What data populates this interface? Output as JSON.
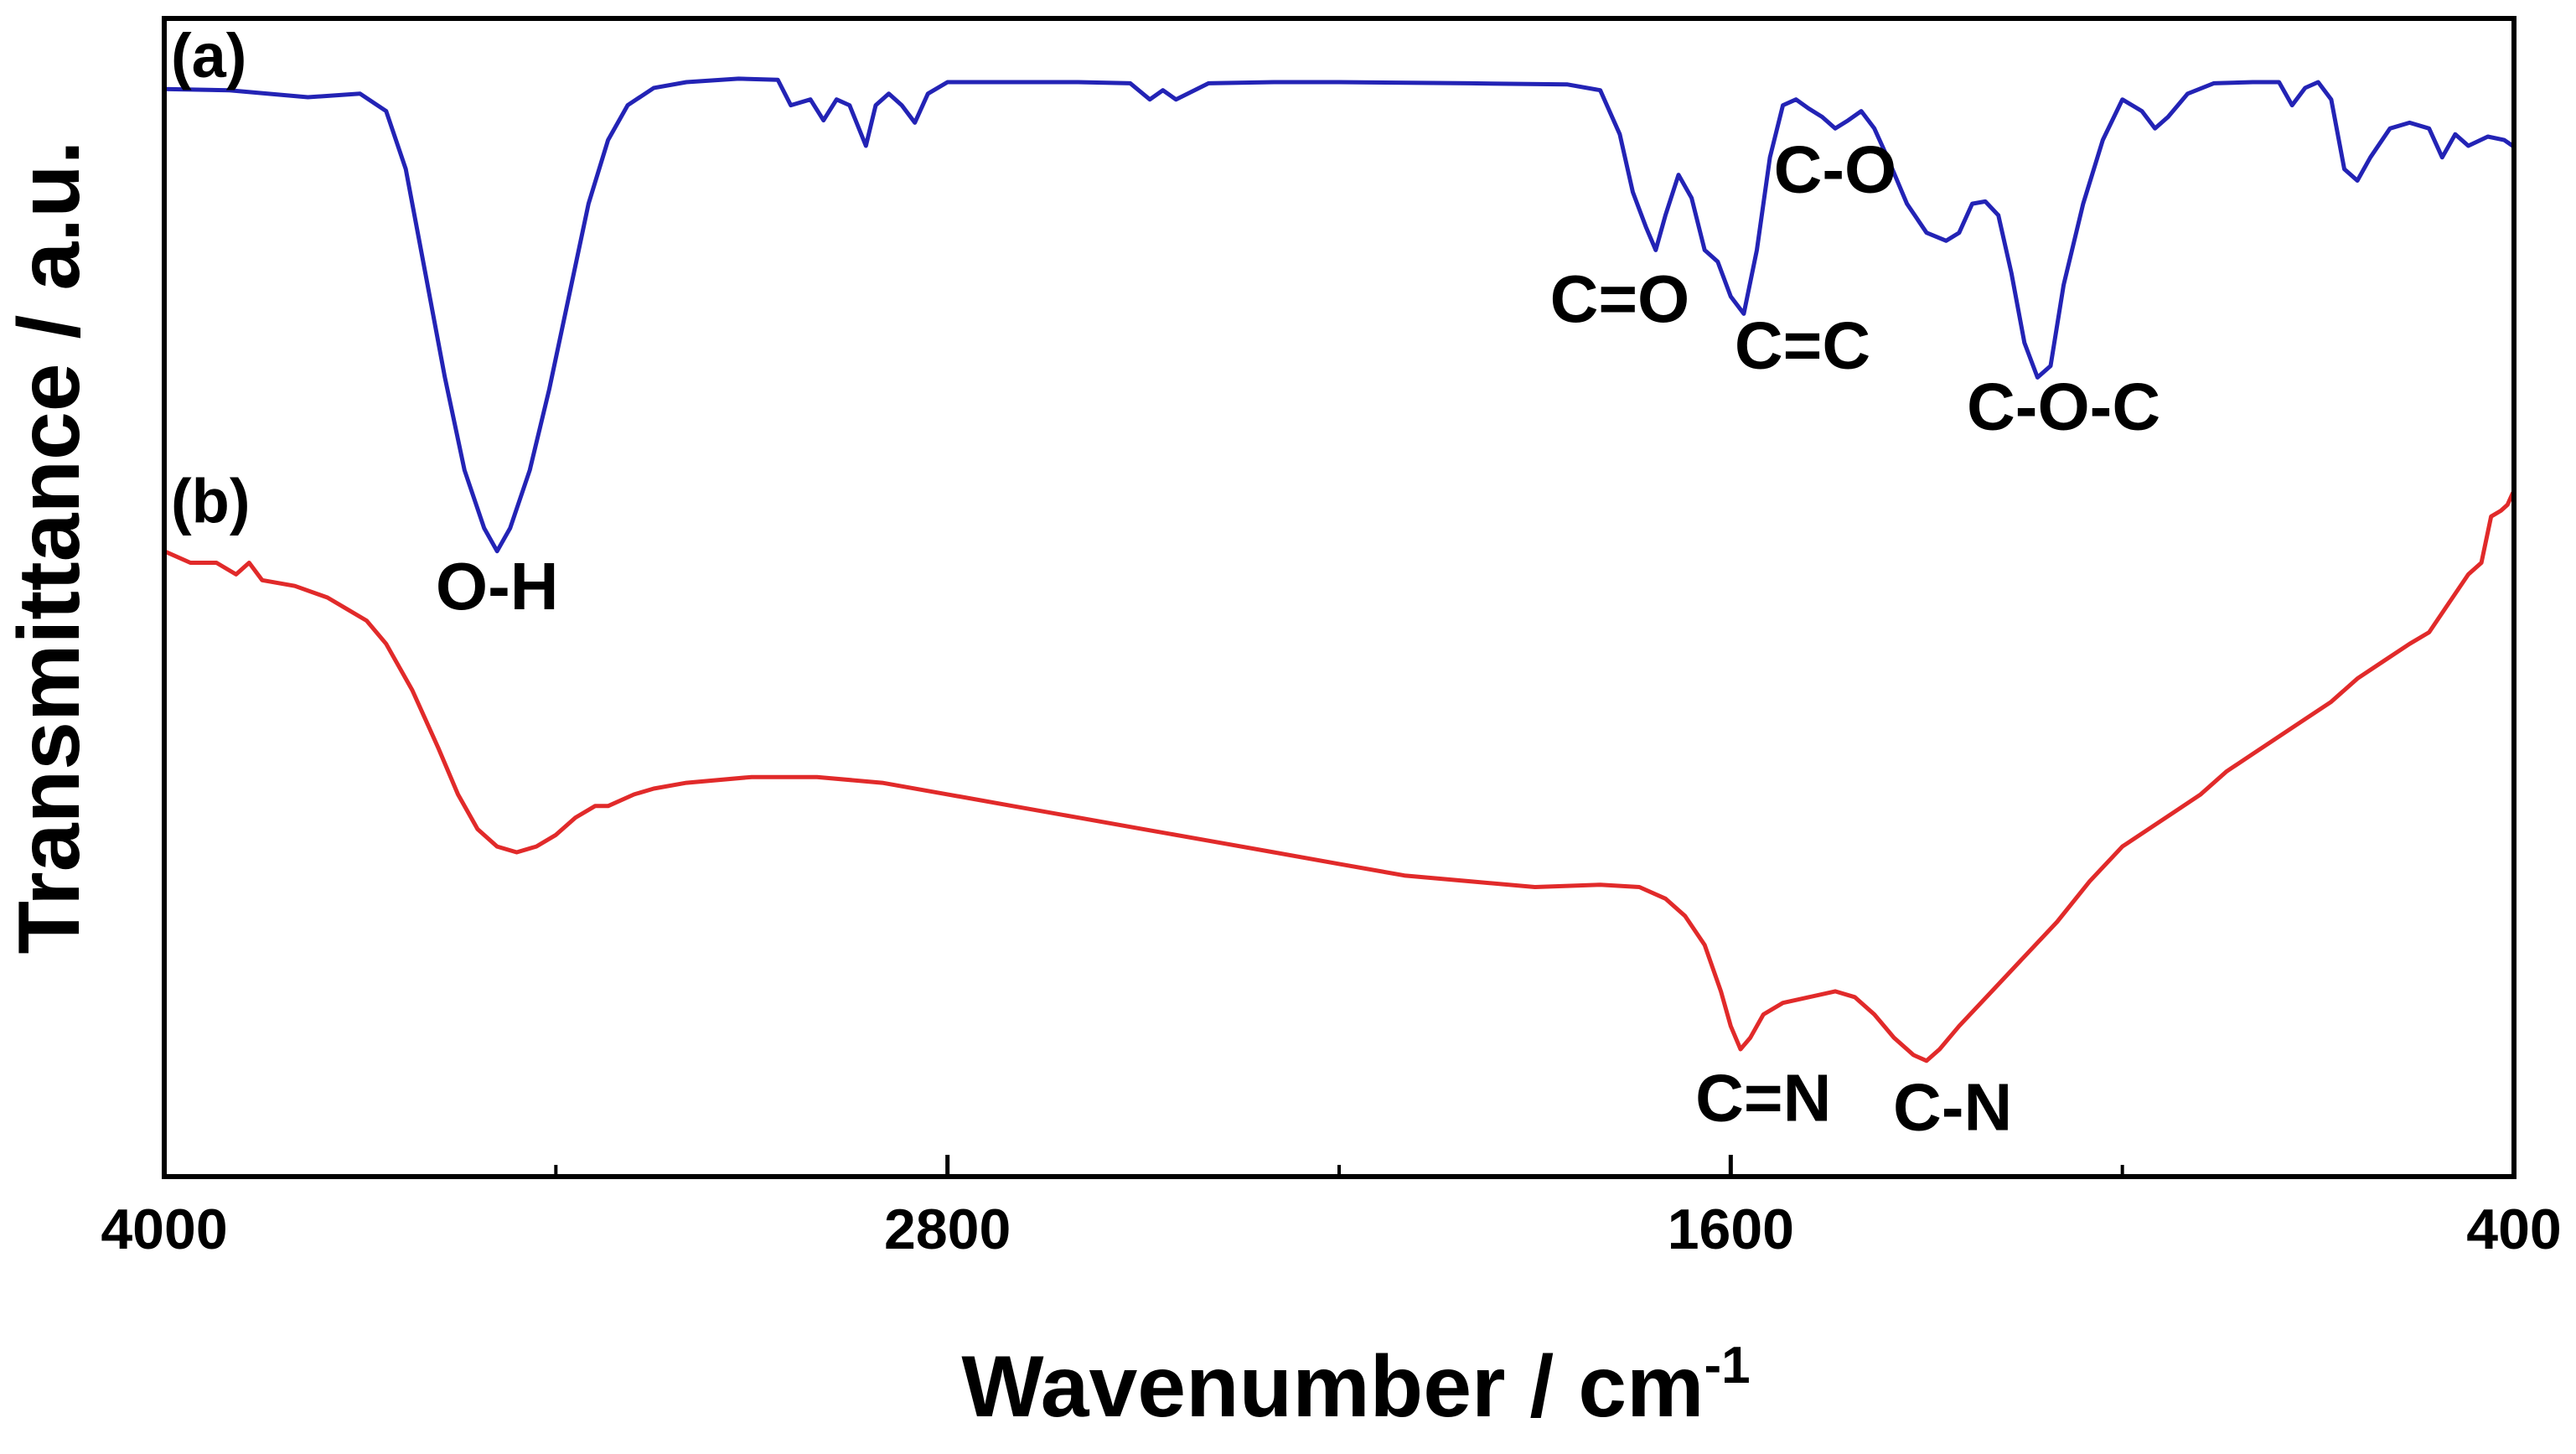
{
  "chart_data": {
    "type": "line",
    "title": "",
    "xlabel": "Wavenumber / cm",
    "xlabel_superscript": "-1",
    "ylabel": "Transmittance / a.u.",
    "xlim": [
      4000,
      400
    ],
    "ylim": [
      0,
      1
    ],
    "x_reversed": true,
    "grid": false,
    "xticks": [
      "4000",
      "2800",
      "1600",
      "400"
    ],
    "colors": {
      "a": "#2323b5",
      "b": "#e12a2a",
      "axis": "#000000"
    },
    "series": [
      {
        "name": "a",
        "panel_label": "(a)",
        "color": "#2323b5",
        "points": [
          [
            4000,
            0.939
          ],
          [
            3900,
            0.938
          ],
          [
            3780,
            0.932
          ],
          [
            3700,
            0.935
          ],
          [
            3660,
            0.92
          ],
          [
            3630,
            0.87
          ],
          [
            3600,
            0.78
          ],
          [
            3570,
            0.69
          ],
          [
            3540,
            0.61
          ],
          [
            3510,
            0.56
          ],
          [
            3490,
            0.54
          ],
          [
            3470,
            0.56
          ],
          [
            3440,
            0.61
          ],
          [
            3410,
            0.68
          ],
          [
            3380,
            0.76
          ],
          [
            3350,
            0.84
          ],
          [
            3320,
            0.895
          ],
          [
            3290,
            0.925
          ],
          [
            3250,
            0.94
          ],
          [
            3200,
            0.945
          ],
          [
            3120,
            0.948
          ],
          [
            3060,
            0.947
          ],
          [
            3040,
            0.925
          ],
          [
            3010,
            0.93
          ],
          [
            2990,
            0.912
          ],
          [
            2970,
            0.93
          ],
          [
            2950,
            0.925
          ],
          [
            2925,
            0.89
          ],
          [
            2910,
            0.925
          ],
          [
            2890,
            0.935
          ],
          [
            2870,
            0.925
          ],
          [
            2850,
            0.91
          ],
          [
            2830,
            0.935
          ],
          [
            2800,
            0.945
          ],
          [
            2700,
            0.945
          ],
          [
            2600,
            0.945
          ],
          [
            2520,
            0.944
          ],
          [
            2490,
            0.93
          ],
          [
            2470,
            0.938
          ],
          [
            2450,
            0.93
          ],
          [
            2400,
            0.944
          ],
          [
            2300,
            0.945
          ],
          [
            2200,
            0.945
          ],
          [
            2000,
            0.944
          ],
          [
            1850,
            0.943
          ],
          [
            1800,
            0.938
          ],
          [
            1770,
            0.9
          ],
          [
            1750,
            0.85
          ],
          [
            1730,
            0.82
          ],
          [
            1715,
            0.8
          ],
          [
            1700,
            0.83
          ],
          [
            1680,
            0.865
          ],
          [
            1660,
            0.845
          ],
          [
            1640,
            0.8
          ],
          [
            1620,
            0.79
          ],
          [
            1600,
            0.76
          ],
          [
            1580,
            0.745
          ],
          [
            1560,
            0.8
          ],
          [
            1540,
            0.88
          ],
          [
            1520,
            0.925
          ],
          [
            1500,
            0.93
          ],
          [
            1480,
            0.922
          ],
          [
            1460,
            0.915
          ],
          [
            1440,
            0.905
          ],
          [
            1420,
            0.912
          ],
          [
            1400,
            0.92
          ],
          [
            1380,
            0.905
          ],
          [
            1360,
            0.88
          ],
          [
            1330,
            0.84
          ],
          [
            1300,
            0.815
          ],
          [
            1270,
            0.808
          ],
          [
            1250,
            0.815
          ],
          [
            1230,
            0.84
          ],
          [
            1210,
            0.842
          ],
          [
            1190,
            0.83
          ],
          [
            1170,
            0.78
          ],
          [
            1150,
            0.72
          ],
          [
            1130,
            0.69
          ],
          [
            1110,
            0.7
          ],
          [
            1090,
            0.77
          ],
          [
            1060,
            0.84
          ],
          [
            1030,
            0.895
          ],
          [
            1000,
            0.93
          ],
          [
            970,
            0.92
          ],
          [
            950,
            0.905
          ],
          [
            930,
            0.915
          ],
          [
            900,
            0.935
          ],
          [
            860,
            0.944
          ],
          [
            800,
            0.945
          ],
          [
            760,
            0.945
          ],
          [
            740,
            0.925
          ],
          [
            720,
            0.94
          ],
          [
            700,
            0.945
          ],
          [
            680,
            0.93
          ],
          [
            660,
            0.87
          ],
          [
            640,
            0.86
          ],
          [
            620,
            0.88
          ],
          [
            590,
            0.905
          ],
          [
            560,
            0.91
          ],
          [
            530,
            0.905
          ],
          [
            510,
            0.88
          ],
          [
            490,
            0.9
          ],
          [
            470,
            0.89
          ],
          [
            440,
            0.898
          ],
          [
            415,
            0.895
          ],
          [
            402,
            0.89
          ]
        ]
      },
      {
        "name": "b",
        "panel_label": "(b)",
        "color": "#e12a2a",
        "points": [
          [
            4000,
            0.54
          ],
          [
            3960,
            0.53
          ],
          [
            3920,
            0.53
          ],
          [
            3890,
            0.52
          ],
          [
            3870,
            0.53
          ],
          [
            3850,
            0.515
          ],
          [
            3800,
            0.51
          ],
          [
            3750,
            0.5
          ],
          [
            3720,
            0.49
          ],
          [
            3690,
            0.48
          ],
          [
            3660,
            0.46
          ],
          [
            3620,
            0.42
          ],
          [
            3580,
            0.37
          ],
          [
            3550,
            0.33
          ],
          [
            3520,
            0.3
          ],
          [
            3490,
            0.285
          ],
          [
            3460,
            0.28
          ],
          [
            3430,
            0.285
          ],
          [
            3400,
            0.295
          ],
          [
            3370,
            0.31
          ],
          [
            3340,
            0.32
          ],
          [
            3320,
            0.32
          ],
          [
            3280,
            0.33
          ],
          [
            3250,
            0.335
          ],
          [
            3200,
            0.34
          ],
          [
            3100,
            0.345
          ],
          [
            3000,
            0.345
          ],
          [
            2900,
            0.34
          ],
          [
            2800,
            0.33
          ],
          [
            2700,
            0.32
          ],
          [
            2600,
            0.31
          ],
          [
            2500,
            0.3
          ],
          [
            2400,
            0.29
          ],
          [
            2300,
            0.28
          ],
          [
            2200,
            0.27
          ],
          [
            2100,
            0.26
          ],
          [
            2000,
            0.255
          ],
          [
            1900,
            0.25
          ],
          [
            1800,
            0.252
          ],
          [
            1740,
            0.25
          ],
          [
            1700,
            0.24
          ],
          [
            1670,
            0.225
          ],
          [
            1640,
            0.2
          ],
          [
            1615,
            0.16
          ],
          [
            1600,
            0.13
          ],
          [
            1585,
            0.11
          ],
          [
            1570,
            0.12
          ],
          [
            1550,
            0.14
          ],
          [
            1520,
            0.15
          ],
          [
            1480,
            0.155
          ],
          [
            1440,
            0.16
          ],
          [
            1410,
            0.155
          ],
          [
            1380,
            0.14
          ],
          [
            1350,
            0.12
          ],
          [
            1320,
            0.105
          ],
          [
            1300,
            0.1
          ],
          [
            1280,
            0.11
          ],
          [
            1250,
            0.13
          ],
          [
            1200,
            0.16
          ],
          [
            1150,
            0.19
          ],
          [
            1100,
            0.22
          ],
          [
            1050,
            0.255
          ],
          [
            1000,
            0.285
          ],
          [
            960,
            0.3
          ],
          [
            920,
            0.315
          ],
          [
            880,
            0.33
          ],
          [
            840,
            0.35
          ],
          [
            800,
            0.365
          ],
          [
            760,
            0.38
          ],
          [
            720,
            0.395
          ],
          [
            680,
            0.41
          ],
          [
            640,
            0.43
          ],
          [
            600,
            0.445
          ],
          [
            560,
            0.46
          ],
          [
            530,
            0.47
          ],
          [
            500,
            0.495
          ],
          [
            470,
            0.52
          ],
          [
            450,
            0.53
          ],
          [
            435,
            0.57
          ],
          [
            420,
            0.575
          ],
          [
            410,
            0.58
          ],
          [
            402,
            0.59
          ]
        ]
      }
    ],
    "annotations": [
      {
        "text": "O-H",
        "x": 3490,
        "y": 0.49
      },
      {
        "text": "C=O",
        "x": 1770,
        "y": 0.738
      },
      {
        "text": "C=C",
        "x": 1490,
        "y": 0.698
      },
      {
        "text": "C-O",
        "x": 1440,
        "y": 0.85
      },
      {
        "text": "C-O-C",
        "x": 1090,
        "y": 0.645
      },
      {
        "text": "C=N",
        "x": 1550,
        "y": 0.048
      },
      {
        "text": "C-N",
        "x": 1260,
        "y": 0.04
      }
    ]
  }
}
